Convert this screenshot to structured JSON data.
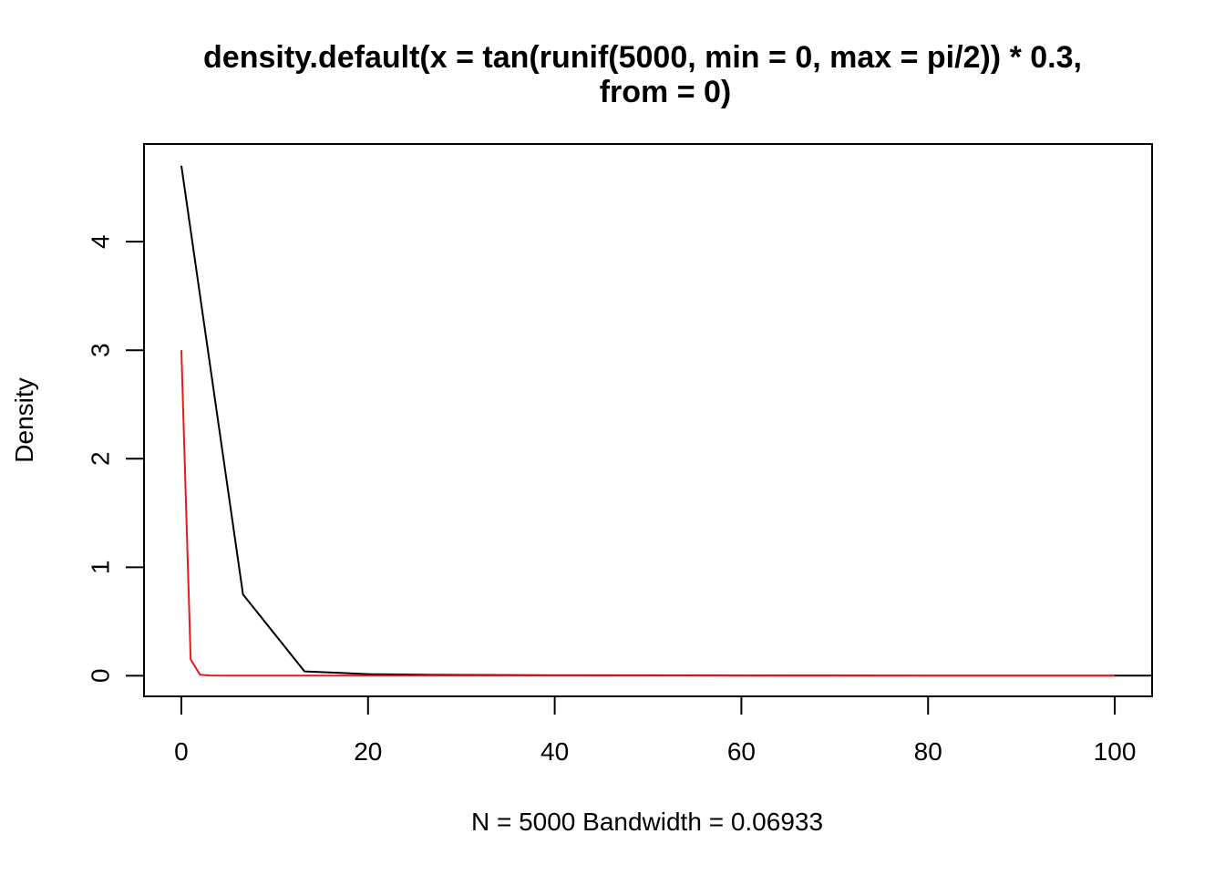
{
  "chart_data": {
    "type": "line",
    "title": "density.default(x = tan(runif(5000, min = 0, max = pi/2)) * 0.3,",
    "title_line2": "from = 0)",
    "xlabel": "N = 5000   Bandwidth = 0.06933",
    "ylabel": "Density",
    "xlim": [
      -4,
      104
    ],
    "ylim": [
      -0.19,
      4.9
    ],
    "x_ticks": [
      0,
      20,
      40,
      60,
      80,
      100
    ],
    "x_tick_labels": [
      "0",
      "20",
      "40",
      "60",
      "80",
      "100"
    ],
    "y_ticks": [
      0,
      1,
      2,
      3,
      4
    ],
    "y_tick_labels": [
      "0",
      "1",
      "2",
      "3",
      "4"
    ],
    "grid": false,
    "series": [
      {
        "color": "#000000",
        "x": [
          0,
          6.6,
          13.2,
          20,
          27,
          40,
          60,
          80,
          104
        ],
        "y": [
          4.7,
          0.75,
          0.04,
          0.015,
          0.008,
          0.004,
          0.002,
          0.001,
          0.0005
        ]
      },
      {
        "color": "#e41a1c",
        "x": [
          0,
          1.0,
          2.0,
          3.0,
          5,
          20,
          50,
          100
        ],
        "y": [
          3.0,
          0.15,
          0.01,
          0.002,
          0.001,
          0.0005,
          0.0003,
          0.0002
        ]
      }
    ]
  }
}
